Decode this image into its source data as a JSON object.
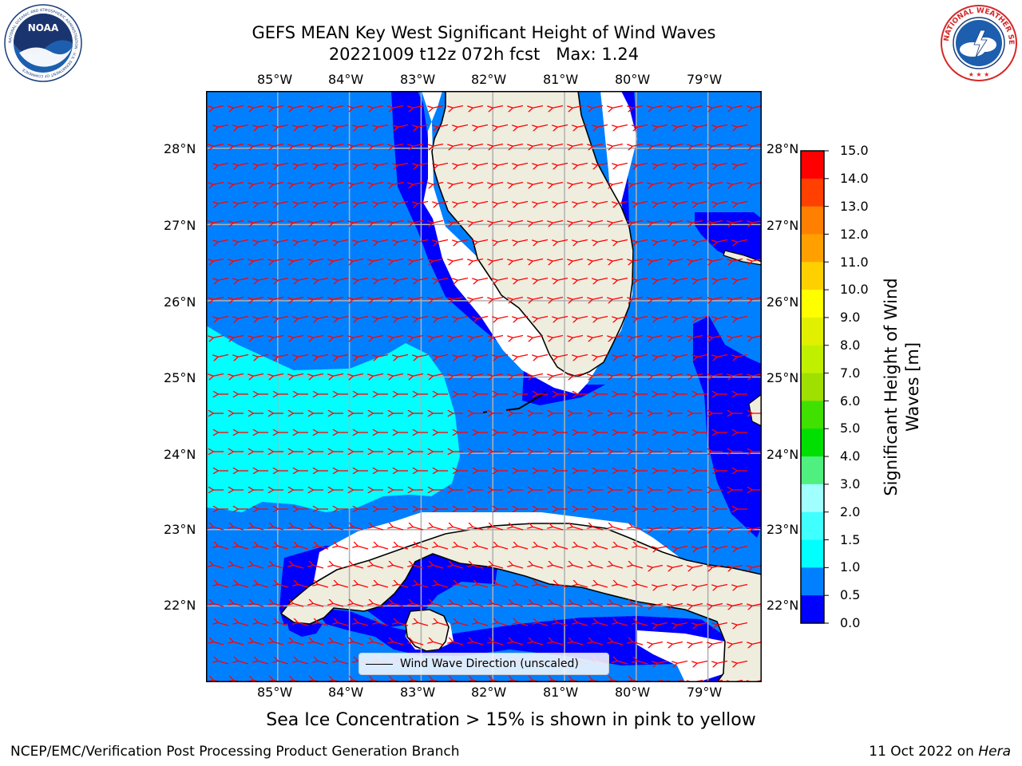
{
  "title": {
    "line1": "GEFS MEAN Key West Significant Height of Wind Waves",
    "line2": "20221009 t12z 072h fcst   Max: 1.24"
  },
  "logos": {
    "left": {
      "name": "noaa-logo",
      "text": "NOAA",
      "ring_text": "NATIONAL OCEANIC AND ATMOSPHERIC ADMINISTRATION · U.S. DEPARTMENT OF COMMERCE"
    },
    "right": {
      "name": "nws-logo",
      "ring_text": "NATIONAL WEATHER SERVICE"
    }
  },
  "map": {
    "lon_ticks": [
      "85°W",
      "84°W",
      "83°W",
      "82°W",
      "81°W",
      "80°W",
      "79°W"
    ],
    "lat_ticks": [
      "28°N",
      "27°N",
      "26°N",
      "25°N",
      "24°N",
      "23°N",
      "22°N"
    ],
    "lon_range": [
      -86.0,
      -78.25
    ],
    "lat_range": [
      21.0,
      28.75
    ],
    "legend": {
      "label": "Wind Wave Direction (unscaled)"
    },
    "arrow_color": "#ff0000",
    "land_color": "#efedde",
    "grid": true
  },
  "colorbar": {
    "label_line1": "Significant Height of Wind",
    "label_line2": "Waves [m]",
    "ticks": [
      "15.0",
      "14.0",
      "13.0",
      "12.0",
      "11.0",
      "10.0",
      "9.0",
      "8.0",
      "7.0",
      "6.0",
      "5.0",
      "4.0",
      "3.0",
      "2.0",
      "1.5",
      "1.0",
      "0.5",
      "0.0"
    ],
    "bins": [
      {
        "from": 0.0,
        "to": 0.5,
        "color": "#0000ff"
      },
      {
        "from": 0.5,
        "to": 1.0,
        "color": "#0080ff"
      },
      {
        "from": 1.0,
        "to": 1.5,
        "color": "#00ffff"
      },
      {
        "from": 1.5,
        "to": 2.0,
        "color": "#40ffff"
      },
      {
        "from": 2.0,
        "to": 3.0,
        "color": "#a0ffff"
      },
      {
        "from": 3.0,
        "to": 4.0,
        "color": "#50f080"
      },
      {
        "from": 4.0,
        "to": 5.0,
        "color": "#00e000"
      },
      {
        "from": 5.0,
        "to": 6.0,
        "color": "#40e000"
      },
      {
        "from": 6.0,
        "to": 7.0,
        "color": "#a0e000"
      },
      {
        "from": 7.0,
        "to": 8.0,
        "color": "#c0f000"
      },
      {
        "from": 8.0,
        "to": 9.0,
        "color": "#e0f000"
      },
      {
        "from": 9.0,
        "to": 10.0,
        "color": "#ffff00"
      },
      {
        "from": 10.0,
        "to": 11.0,
        "color": "#ffd000"
      },
      {
        "from": 11.0,
        "to": 12.0,
        "color": "#ffa000"
      },
      {
        "from": 12.0,
        "to": 13.0,
        "color": "#ff8000"
      },
      {
        "from": 13.0,
        "to": 14.0,
        "color": "#ff4000"
      },
      {
        "from": 14.0,
        "to": 15.0,
        "color": "#ff0000"
      }
    ]
  },
  "ice_note": "Sea Ice Concentration > 15% is shown in pink to yellow",
  "footer": {
    "left": "NCEP/EMC/Verification Post Processing Product Generation Branch",
    "right_date": "11 Oct 2022 on ",
    "right_machine": "Hera"
  }
}
